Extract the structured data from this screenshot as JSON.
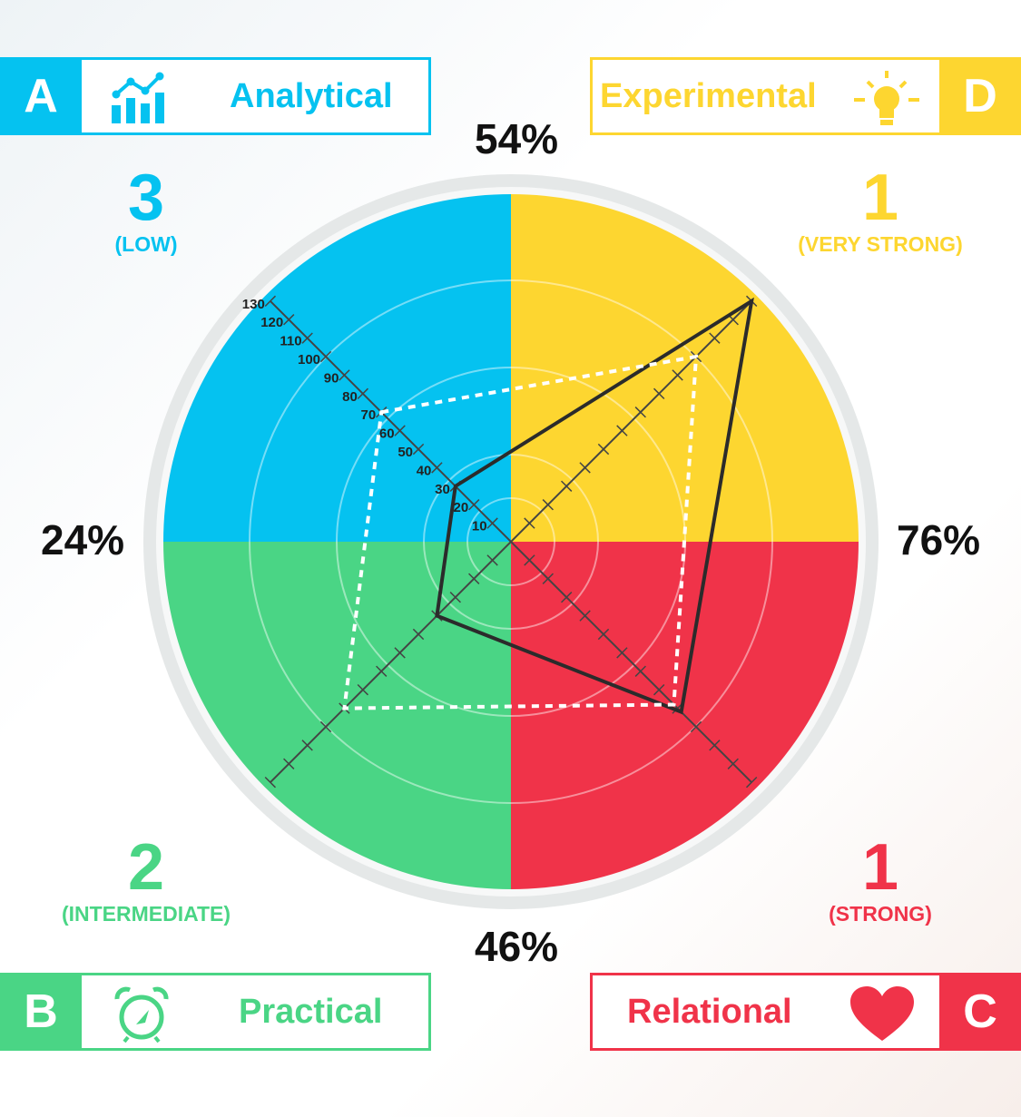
{
  "colors": {
    "analytical": "#05c2f0",
    "experimental": "#fdd630",
    "relational": "#f03349",
    "practical": "#4ad585"
  },
  "quadrants": {
    "analytical": {
      "letter": "A",
      "name": "Analytical",
      "icon": "bar-chart-icon",
      "score": "3",
      "level": "(LOW)",
      "percent": "54%"
    },
    "experimental": {
      "letter": "D",
      "name": "Experimental",
      "icon": "light-bulb-icon",
      "score": "1",
      "level": "(VERY STRONG)",
      "percent": "76%"
    },
    "relational": {
      "letter": "C",
      "name": "Relational",
      "icon": "heart-icon",
      "score": "1",
      "level": "(STRONG)",
      "percent": "46%"
    },
    "practical": {
      "letter": "B",
      "name": "Practical",
      "icon": "alarm-clock-icon",
      "score": "2",
      "level": "(INTERMEDIATE)",
      "percent": "24%"
    }
  },
  "chart_data": {
    "type": "radar",
    "axes": [
      "Analytical",
      "Experimental",
      "Relational",
      "Practical"
    ],
    "tick_labels": [
      "10",
      "20",
      "30",
      "40",
      "50",
      "60",
      "70",
      "80",
      "90",
      "100",
      "110",
      "120",
      "130"
    ],
    "range": [
      0,
      130
    ],
    "series": [
      {
        "style": "solid",
        "values": [
          30,
          130,
          92,
          40
        ]
      },
      {
        "style": "dashed",
        "values": [
          70,
          100,
          88,
          90
        ]
      }
    ]
  }
}
